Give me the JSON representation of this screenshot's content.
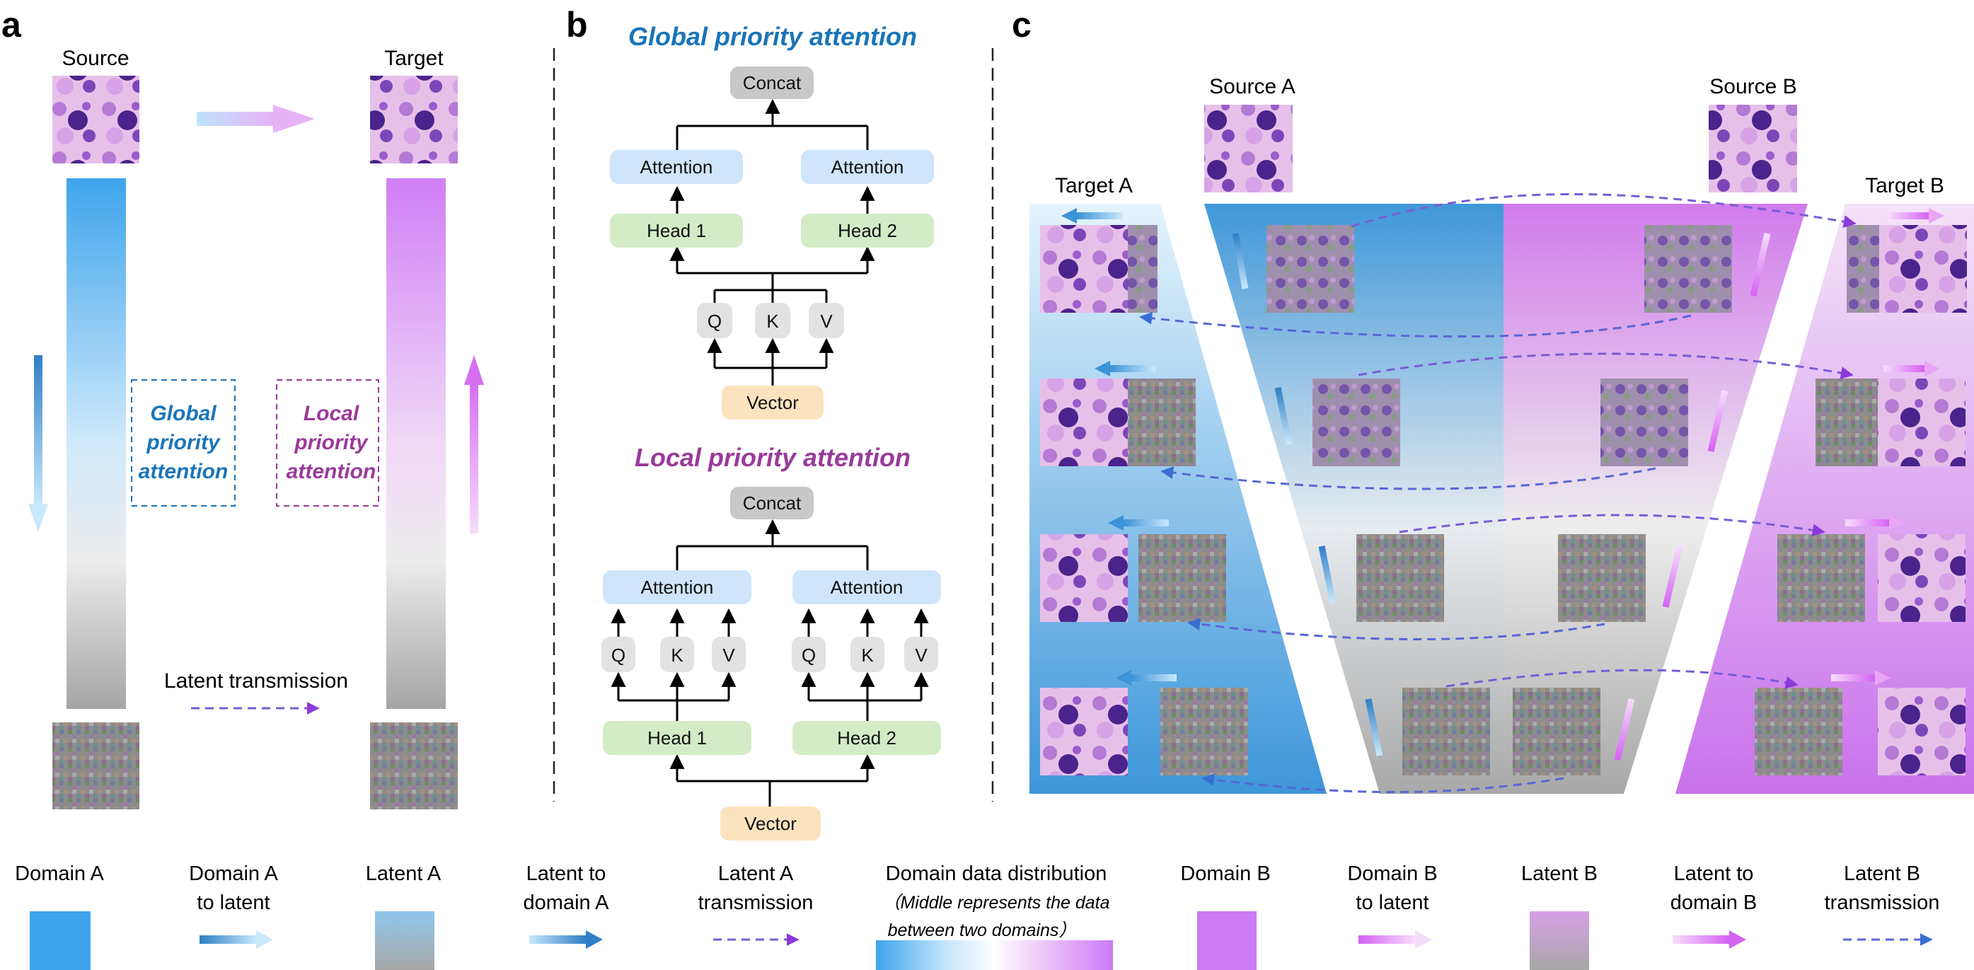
{
  "panels": {
    "a": "a",
    "b": "b",
    "c": "c"
  },
  "panel_a": {
    "source": "Source",
    "target": "Target",
    "global_attention": [
      "Global",
      "priority",
      "attention"
    ],
    "local_attention": [
      "Local",
      "priority",
      "attention"
    ],
    "latent_transmission": "Latent transmission"
  },
  "panel_b": {
    "global_title": "Global priority attention",
    "local_title": "Local priority attention",
    "concat": "Concat",
    "attention": "Attention",
    "head1": "Head 1",
    "head2": "Head 2",
    "q": "Q",
    "k": "K",
    "v": "V",
    "vector": "Vector"
  },
  "panel_c": {
    "source_a": "Source A",
    "source_b": "Source B",
    "target_a": "Target A",
    "target_b": "Target B"
  },
  "legend": {
    "domain_a": [
      "Domain A"
    ],
    "domain_a_to_latent": [
      "Domain A",
      "to latent"
    ],
    "latent_a": [
      "Latent A"
    ],
    "latent_to_domain_a": [
      "Latent to",
      "domain A"
    ],
    "latent_a_transmission": [
      "Latent A",
      "transmission"
    ],
    "distribution": "Domain data distribution",
    "distribution_note": [
      "（Middle represents the data",
      "between two domains）"
    ],
    "domain_b": [
      "Domain B"
    ],
    "domain_b_to_latent": [
      "Domain B",
      "to latent"
    ],
    "latent_b": [
      "Latent B"
    ],
    "latent_to_domain_b": [
      "Latent to",
      "domain B"
    ],
    "latent_b_transmission": [
      "Latent B",
      "transmission"
    ]
  },
  "colors": {
    "blue": "#3ea4ec",
    "light_blue": "#c4e6fa",
    "purple": "#cc7af6",
    "light_purple": "#efd2fb",
    "gray": "#a9a9a9",
    "title_blue": "#1a74b8",
    "title_purple": "#9a3a9a",
    "attention_box": "#cfe5fb",
    "head_box": "#d3ecc6",
    "vector_box": "#fce3bf",
    "qkv_box": "#e2e2e2",
    "concat_box": "#c8c8c8"
  }
}
